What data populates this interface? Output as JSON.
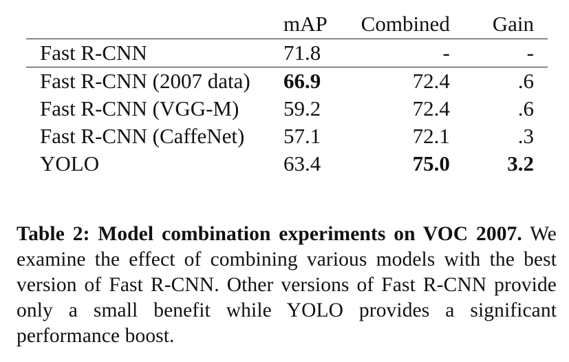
{
  "table": {
    "headers": {
      "model": "",
      "map": "mAP",
      "combined": "Combined",
      "gain": "Gain"
    },
    "rows": [
      {
        "model": "Fast R-CNN",
        "map": "71.8",
        "combined": "-",
        "gain": "-"
      },
      {
        "model": "Fast R-CNN (2007 data)",
        "map": "66.9",
        "combined": "72.4",
        "gain": ".6"
      },
      {
        "model": "Fast R-CNN (VGG-M)",
        "map": "59.2",
        "combined": "72.4",
        "gain": ".6"
      },
      {
        "model": "Fast R-CNN (CaffeNet)",
        "map": "57.1",
        "combined": "72.1",
        "gain": ".3"
      },
      {
        "model": "YOLO",
        "map": "63.4",
        "combined": "75.0",
        "gain": "3.2"
      }
    ]
  },
  "caption": {
    "title": "Table 2: Model combination experiments on VOC 2007.",
    "body": "We examine the effect of combining various models with the best version of Fast R-CNN. Other versions of Fast R-CNN provide only a small benefit while YOLO provides a significant performance boost."
  }
}
